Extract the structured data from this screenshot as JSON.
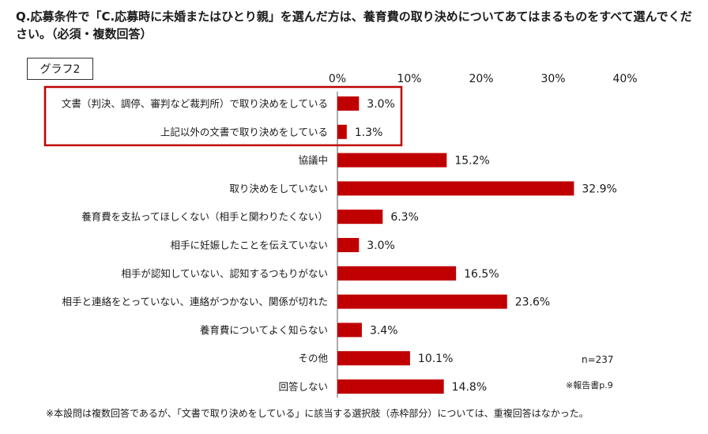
{
  "question": "Q.応募条件で「C.応募時に未婚またはひとり親」を選んだ方は、養育費の取り決めについてあてはまるものをすべて選んでください。（必須・複数回答）",
  "graph_label": "グラフ2",
  "sample_size": "n=237",
  "report_ref": "※報告書p.9",
  "footnote": "※本設問は複数回答であるが、「文書で取り決めをしている」に該当する選択肢（赤枠部分）については、重複回答はなかった。",
  "colors": {
    "bar": "#c00000",
    "highlight_box": "#c00000"
  },
  "chart_data": {
    "type": "bar",
    "orientation": "horizontal",
    "title": "",
    "xlabel": "",
    "ylabel": "",
    "xlim": [
      0,
      40
    ],
    "ticks": [
      0,
      10,
      20,
      30,
      40
    ],
    "tick_labels": [
      "0%",
      "10%",
      "20%",
      "30%",
      "40%"
    ],
    "categories": [
      "文書（判決、調停、審判など裁判所）で取り決めをしている",
      "上記以外の文書で取り決めをしている",
      "協議中",
      "取り決めをしていない",
      "養育費を支払ってほしくない（相手と関わりたくない）",
      "相手に妊娠したことを伝えていない",
      "相手が認知していない、認知するつもりがない",
      "相手と連絡をとっていない、連絡がつかない、関係が切れた",
      "養育費についてよく知らない",
      "その他",
      "回答しない"
    ],
    "values": [
      3.0,
      1.3,
      15.2,
      32.9,
      6.3,
      3.0,
      16.5,
      23.6,
      3.4,
      10.1,
      14.8
    ],
    "value_labels": [
      "3.0%",
      "1.3%",
      "15.2%",
      "32.9%",
      "6.3%",
      "3.0%",
      "16.5%",
      "23.6%",
      "3.4%",
      "10.1%",
      "14.8%"
    ],
    "highlighted": [
      0,
      1
    ],
    "grid": false,
    "legend": "none"
  }
}
